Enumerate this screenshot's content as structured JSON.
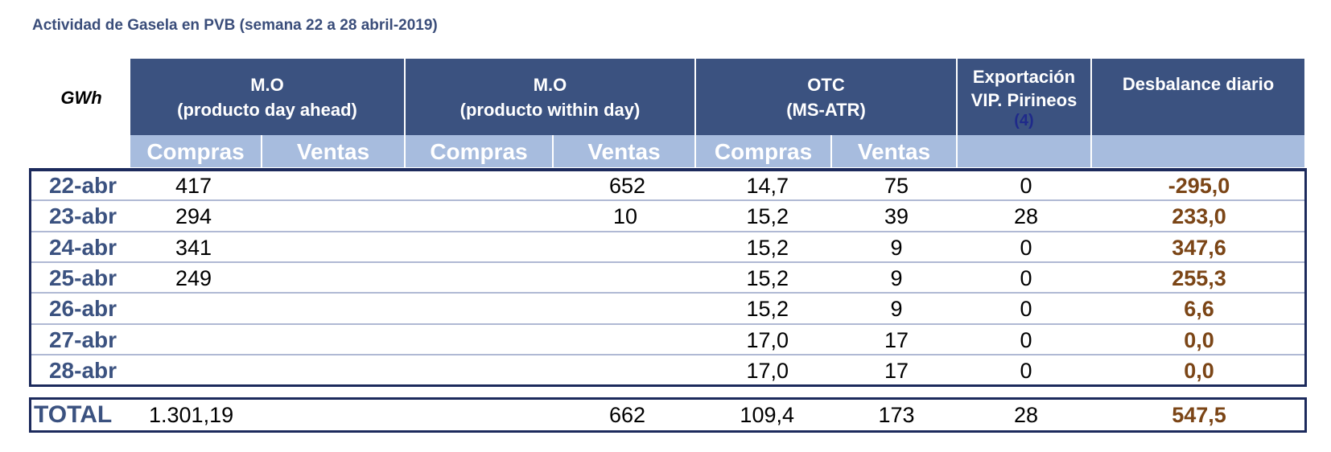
{
  "title": "Actividad de Gasela en PVB (semana 22 a 28 abril-2019)",
  "unit": "GWh",
  "headers": {
    "mo_da_line1": "M.O",
    "mo_da_line2": "(producto day ahead)",
    "mo_wd_line1": "M.O",
    "mo_wd_line2": "(producto within day)",
    "otc_line1": "OTC",
    "otc_line2": "(MS-ATR)",
    "exp_line1": "Exportación",
    "exp_line2": "VIP. Pirineos",
    "exp_note": "(4)",
    "desbalance": "Desbalance diario"
  },
  "subheaders": {
    "compras": "Compras",
    "ventas": "Ventas"
  },
  "rows": [
    {
      "date": "22-abr",
      "mo_da_compras": "417",
      "mo_da_ventas": "",
      "mo_wd_compras": "",
      "mo_wd_ventas": "652",
      "otc_compras": "14,7",
      "otc_ventas": "75",
      "export": "0",
      "desbalance": "-295,0"
    },
    {
      "date": "23-abr",
      "mo_da_compras": "294",
      "mo_da_ventas": "",
      "mo_wd_compras": "",
      "mo_wd_ventas": "10",
      "otc_compras": "15,2",
      "otc_ventas": "39",
      "export": "28",
      "desbalance": "233,0"
    },
    {
      "date": "24-abr",
      "mo_da_compras": "341",
      "mo_da_ventas": "",
      "mo_wd_compras": "",
      "mo_wd_ventas": "",
      "otc_compras": "15,2",
      "otc_ventas": "9",
      "export": "0",
      "desbalance": "347,6"
    },
    {
      "date": "25-abr",
      "mo_da_compras": "249",
      "mo_da_ventas": "",
      "mo_wd_compras": "",
      "mo_wd_ventas": "",
      "otc_compras": "15,2",
      "otc_ventas": "9",
      "export": "0",
      "desbalance": "255,3"
    },
    {
      "date": "26-abr",
      "mo_da_compras": "",
      "mo_da_ventas": "",
      "mo_wd_compras": "",
      "mo_wd_ventas": "",
      "otc_compras": "15,2",
      "otc_ventas": "9",
      "export": "0",
      "desbalance": "6,6"
    },
    {
      "date": "27-abr",
      "mo_da_compras": "",
      "mo_da_ventas": "",
      "mo_wd_compras": "",
      "mo_wd_ventas": "",
      "otc_compras": "17,0",
      "otc_ventas": "17",
      "export": "0",
      "desbalance": "0,0"
    },
    {
      "date": "28-abr",
      "mo_da_compras": "",
      "mo_da_ventas": "",
      "mo_wd_compras": "",
      "mo_wd_ventas": "",
      "otc_compras": "17,0",
      "otc_ventas": "17",
      "export": "0",
      "desbalance": "0,0"
    }
  ],
  "total": {
    "label": "TOTAL",
    "mo_da_compras": "1.301,19",
    "mo_wd_ventas": "662",
    "otc_compras": "109,4",
    "otc_ventas": "173",
    "export": "28",
    "desbalance": "547,5"
  },
  "colors": {
    "header_bg": "#3b5280",
    "subheader_bg": "#a7bcde",
    "border": "#1c2a5c",
    "date_text": "#3b5280",
    "imbalance_text": "#7b4516"
  }
}
